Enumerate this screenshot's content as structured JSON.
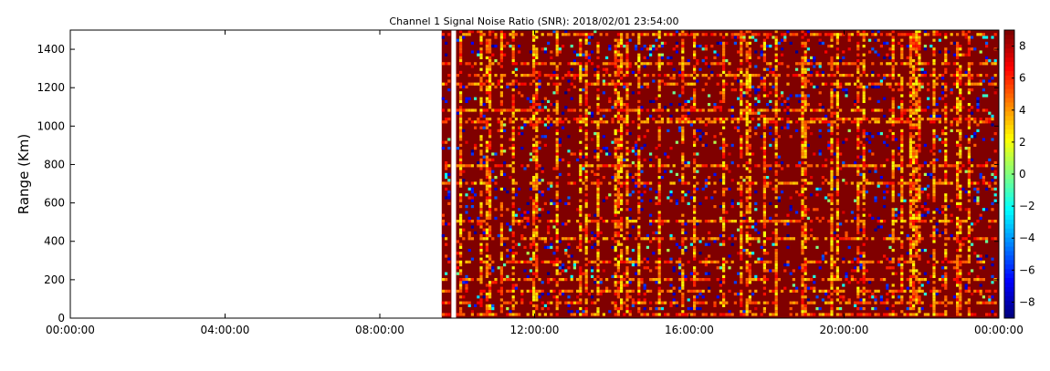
{
  "chart_data": {
    "type": "heatmap",
    "title": "Channel 1 Signal Noise Ratio (SNR): 2018/02/01 23:54:00",
    "xlabel": "",
    "ylabel": "Range (Km)",
    "x_ticks": [
      "00:00:00",
      "04:00:00",
      "08:00:00",
      "12:00:00",
      "16:00:00",
      "20:00:00",
      "00:00:00"
    ],
    "x_tick_hours": [
      0,
      4,
      8,
      12,
      16,
      20,
      24
    ],
    "xlim_hours": [
      0,
      24
    ],
    "ylim": [
      0,
      1500
    ],
    "y_ticks": [
      0,
      200,
      400,
      600,
      800,
      1000,
      1200,
      1400
    ],
    "colorbar": {
      "colormap": "jet",
      "vmin": -9,
      "vmax": 9,
      "ticks": [
        -8,
        -6,
        -4,
        -2,
        0,
        2,
        4,
        6,
        8
      ]
    },
    "data_start_hours": 9.6,
    "gap_hours": [
      9.85,
      9.97
    ],
    "dominant_value": 9,
    "bright_range_rows_km": [
      20,
      80,
      135,
      200,
      300,
      410,
      510,
      710,
      800,
      1015,
      1030,
      1080,
      1225,
      1265,
      1330,
      1480
    ],
    "grid": false
  },
  "colors": {
    "background": "#ffffff",
    "axis": "#000000",
    "dominant": "#800000"
  }
}
